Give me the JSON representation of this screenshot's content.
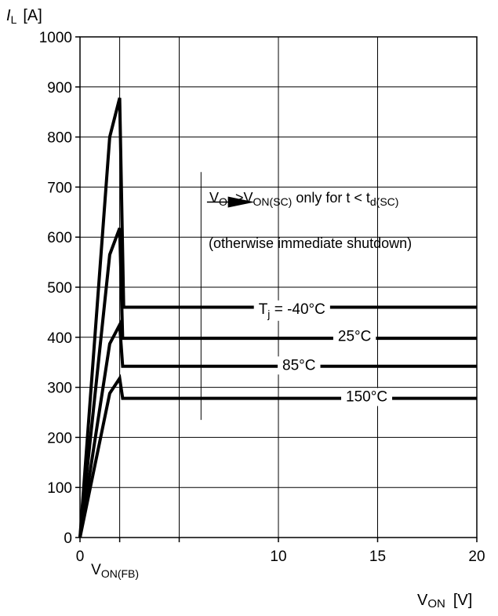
{
  "chart_data": {
    "type": "line",
    "title": "",
    "ylabel": {
      "symbol": "I",
      "sub": "L",
      "unit": "[A]"
    },
    "xlabel": {
      "symbol": "V",
      "sub": "ON",
      "unit": "[V]"
    },
    "xlim": [
      0,
      20
    ],
    "ylim": [
      0,
      1000
    ],
    "x_ticks": [
      {
        "value": 0,
        "label": "0"
      },
      {
        "value": 10,
        "label": "10"
      },
      {
        "value": 15,
        "label": "15"
      },
      {
        "value": 20,
        "label": "20"
      }
    ],
    "x_gridlines": [
      0,
      2,
      5,
      10,
      15,
      20
    ],
    "y_ticks": [
      0,
      100,
      200,
      300,
      400,
      500,
      600,
      700,
      800,
      900,
      1000
    ],
    "grid": true,
    "x_marker": {
      "value": 2,
      "main": "V",
      "sub": "ON(FB)"
    },
    "annotation": {
      "line1": {
        "a": "V",
        "a_sub": "ON",
        "gt": ">",
        "b": "V",
        "b_sub": "ON(SC)",
        "c": " only for t < t",
        "c_sub": "d(SC)"
      },
      "line2": "(otherwise immediate shutdown)",
      "arrow_from_x": 6.4,
      "arrow_to_x": 8.8,
      "arrow_y": 670,
      "separator_x": 6.1,
      "separator_y": [
        235,
        730
      ]
    },
    "series": [
      {
        "label_main": "T",
        "label_sub": "j",
        "label_rest": " = -40°C",
        "label_x": 9,
        "label_y": 447,
        "x": [
          0,
          1.5,
          2.0,
          2.2,
          20
        ],
        "y": [
          0,
          800,
          878,
          460,
          460
        ]
      },
      {
        "label_main": "",
        "label_sub": "",
        "label_rest": "25°C",
        "label_x": 13,
        "label_y": 393,
        "x": [
          0,
          1.5,
          2.0,
          2.15,
          20
        ],
        "y": [
          0,
          565,
          618,
          398,
          398
        ]
      },
      {
        "label_main": "",
        "label_sub": "",
        "label_rest": "85°C",
        "label_x": 10.2,
        "label_y": 335,
        "x": [
          0,
          1.5,
          2.0,
          2.15,
          20
        ],
        "y": [
          0,
          387,
          425,
          342,
          342
        ]
      },
      {
        "label_main": "",
        "label_sub": "",
        "label_rest": "150°C",
        "label_x": 13.4,
        "label_y": 272,
        "x": [
          0,
          1.5,
          2.0,
          2.15,
          20
        ],
        "y": [
          0,
          288,
          318,
          278,
          278
        ]
      }
    ]
  }
}
